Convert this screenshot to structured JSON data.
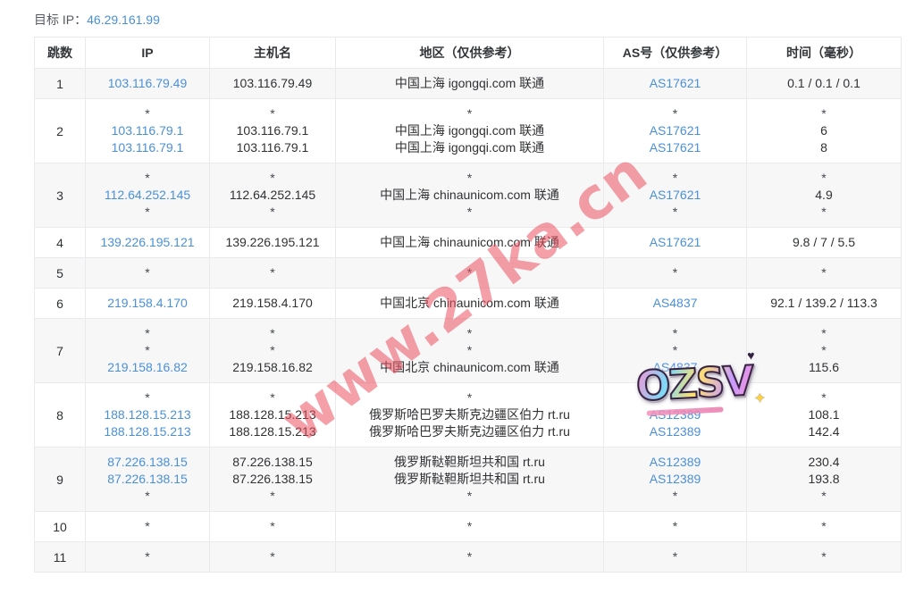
{
  "header": {
    "label": "目标 IP：",
    "ip": "46.29.161.99"
  },
  "watermark": {
    "text": "www.27ka.cn"
  },
  "sticker": {
    "text": "OZSV",
    "heart": "♥",
    "sparkle": "✦"
  },
  "colors": {
    "link_blue": "#4a90d9",
    "watermark_pink": "#ec5060",
    "row_stripe": "#f7f7f8",
    "border": "#e8eaec",
    "text": "#303133"
  },
  "table": {
    "headers": [
      "跳数",
      "IP",
      "主机名",
      "地区（仅供参考）",
      "AS号（仅供参考）",
      "时间（毫秒）"
    ],
    "rows": [
      {
        "hop": "1",
        "ip": [
          "103.116.79.49"
        ],
        "host": [
          "103.116.79.49"
        ],
        "region": [
          "中国上海 igongqi.com 联通"
        ],
        "asn": [
          "AS17621"
        ],
        "time": [
          "0.1 / 0.1 / 0.1"
        ]
      },
      {
        "hop": "2",
        "ip": [
          "*",
          "103.116.79.1",
          "103.116.79.1"
        ],
        "host": [
          "*",
          "103.116.79.1",
          "103.116.79.1"
        ],
        "region": [
          "*",
          "中国上海 igongqi.com 联通",
          "中国上海 igongqi.com 联通"
        ],
        "asn": [
          "*",
          "AS17621",
          "AS17621"
        ],
        "time": [
          "*",
          "6",
          "8"
        ]
      },
      {
        "hop": "3",
        "ip": [
          "*",
          "112.64.252.145",
          "*"
        ],
        "host": [
          "*",
          "112.64.252.145",
          "*"
        ],
        "region": [
          "*",
          "中国上海 chinaunicom.com 联通",
          "*"
        ],
        "asn": [
          "*",
          "AS17621",
          "*"
        ],
        "time": [
          "*",
          "4.9",
          "*"
        ]
      },
      {
        "hop": "4",
        "ip": [
          "139.226.195.121"
        ],
        "host": [
          "139.226.195.121"
        ],
        "region": [
          "中国上海 chinaunicom.com 联通"
        ],
        "asn": [
          "AS17621"
        ],
        "time": [
          "9.8 / 7 / 5.5"
        ]
      },
      {
        "hop": "5",
        "ip": [
          "*"
        ],
        "host": [
          "*"
        ],
        "region": [
          "*"
        ],
        "asn": [
          "*"
        ],
        "time": [
          "*"
        ]
      },
      {
        "hop": "6",
        "ip": [
          "219.158.4.170"
        ],
        "host": [
          "219.158.4.170"
        ],
        "region": [
          "中国北京 chinaunicom.com 联通"
        ],
        "asn": [
          "AS4837"
        ],
        "time": [
          "92.1 / 139.2 / 113.3"
        ]
      },
      {
        "hop": "7",
        "ip": [
          "*",
          "*",
          "219.158.16.82"
        ],
        "host": [
          "*",
          "*",
          "219.158.16.82"
        ],
        "region": [
          "*",
          "*",
          "中国北京 chinaunicom.com 联通"
        ],
        "asn": [
          "*",
          "*",
          "AS4837"
        ],
        "time": [
          "*",
          "*",
          "115.6"
        ]
      },
      {
        "hop": "8",
        "ip": [
          "*",
          "188.128.15.213",
          "188.128.15.213"
        ],
        "host": [
          "*",
          "188.128.15.213",
          "188.128.15.213"
        ],
        "region": [
          "*",
          "俄罗斯哈巴罗夫斯克边疆区伯力 rt.ru",
          "俄罗斯哈巴罗夫斯克边疆区伯力 rt.ru"
        ],
        "asn": [
          "*",
          "AS12389",
          "AS12389"
        ],
        "time": [
          "*",
          "108.1",
          "142.4"
        ]
      },
      {
        "hop": "9",
        "ip": [
          "87.226.138.15",
          "87.226.138.15",
          "*"
        ],
        "host": [
          "87.226.138.15",
          "87.226.138.15",
          "*"
        ],
        "region": [
          "俄罗斯鞑靼斯坦共和国 rt.ru",
          "俄罗斯鞑靼斯坦共和国 rt.ru",
          "*"
        ],
        "asn": [
          "AS12389",
          "AS12389",
          "*"
        ],
        "time": [
          "230.4",
          "193.8",
          "*"
        ]
      },
      {
        "hop": "10",
        "ip": [
          "*"
        ],
        "host": [
          "*"
        ],
        "region": [
          "*"
        ],
        "asn": [
          "*"
        ],
        "time": [
          "*"
        ]
      },
      {
        "hop": "11",
        "ip": [
          "*"
        ],
        "host": [
          "*"
        ],
        "region": [
          "*"
        ],
        "asn": [
          "*"
        ],
        "time": [
          "*"
        ]
      }
    ]
  }
}
